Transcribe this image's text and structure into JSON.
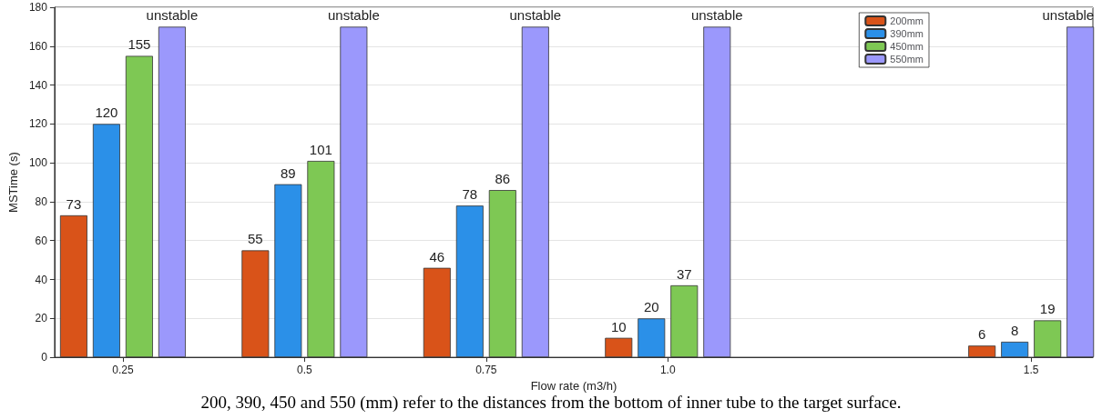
{
  "chart_data": {
    "type": "bar",
    "xlabel": "Flow rate (m3/h)",
    "ylabel": "MSTime (s)",
    "x": [
      0.25,
      0.5,
      0.75,
      1.0,
      1.5
    ],
    "series": [
      {
        "name": "200mm",
        "color": "#d95319",
        "values": [
          73,
          55,
          46,
          10,
          6
        ],
        "value_labels": [
          "73",
          "55",
          "46",
          "10",
          "6"
        ]
      },
      {
        "name": "390mm",
        "color": "#2b90e8",
        "values": [
          120,
          89,
          78,
          20,
          8
        ],
        "value_labels": [
          "120",
          "89",
          "78",
          "20",
          "8"
        ]
      },
      {
        "name": "450mm",
        "color": "#7ec854",
        "values": [
          155,
          101,
          86,
          37,
          19
        ],
        "value_labels": [
          "155",
          "101",
          "86",
          "37",
          "19"
        ]
      },
      {
        "name": "550mm",
        "color": "#9b98fc",
        "values": [
          170,
          170,
          170,
          170,
          170
        ],
        "value_labels": [
          "unstable",
          "unstable",
          "unstable",
          "unstable",
          "unstable"
        ]
      }
    ],
    "xlim": [
      0.156,
      1.585
    ],
    "xticks": [
      0.25,
      0.5,
      0.75,
      {
        "value": 1.0,
        "label": "1.0"
      },
      1.5
    ],
    "ylim": [
      0,
      180
    ],
    "yticks": [
      0,
      20,
      40,
      60,
      80,
      100,
      120,
      140,
      160,
      180
    ],
    "grid": "y",
    "legend": "top right",
    "annotations": [
      "200, 390, 450 and 550 (mm) refer to the distances from the bottom of inner tube to the target surface."
    ]
  }
}
